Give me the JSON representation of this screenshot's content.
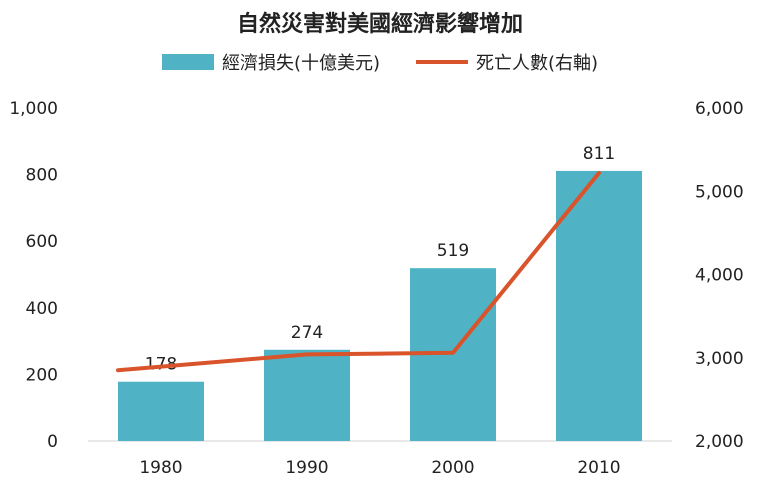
{
  "chart_data": {
    "type": "bar",
    "title": "自然災害對美國經濟影響增加",
    "categories": [
      "1980",
      "1990",
      "2000",
      "2010"
    ],
    "series": [
      {
        "name": "經濟損失(十億美元)",
        "type": "bar",
        "axis": "left",
        "values": [
          178,
          274,
          519,
          811
        ],
        "data_labels": [
          "178",
          "274",
          "519",
          "811"
        ],
        "color": "#4fb3c5"
      },
      {
        "name": "死亡人數(右軸)",
        "type": "line",
        "axis": "right",
        "values": [
          2850,
          3040,
          3060,
          5220
        ],
        "color": "#d9532b"
      }
    ],
    "y_left": {
      "lim": [
        0,
        1000
      ],
      "ticks": [
        "0",
        "200",
        "400",
        "600",
        "800",
        "1,000"
      ]
    },
    "y_right": {
      "lim": [
        2000,
        6000
      ],
      "ticks": [
        "2,000",
        "3,000",
        "4,000",
        "5,000",
        "6,000"
      ]
    },
    "grid": false,
    "legend_position": "top-center"
  }
}
